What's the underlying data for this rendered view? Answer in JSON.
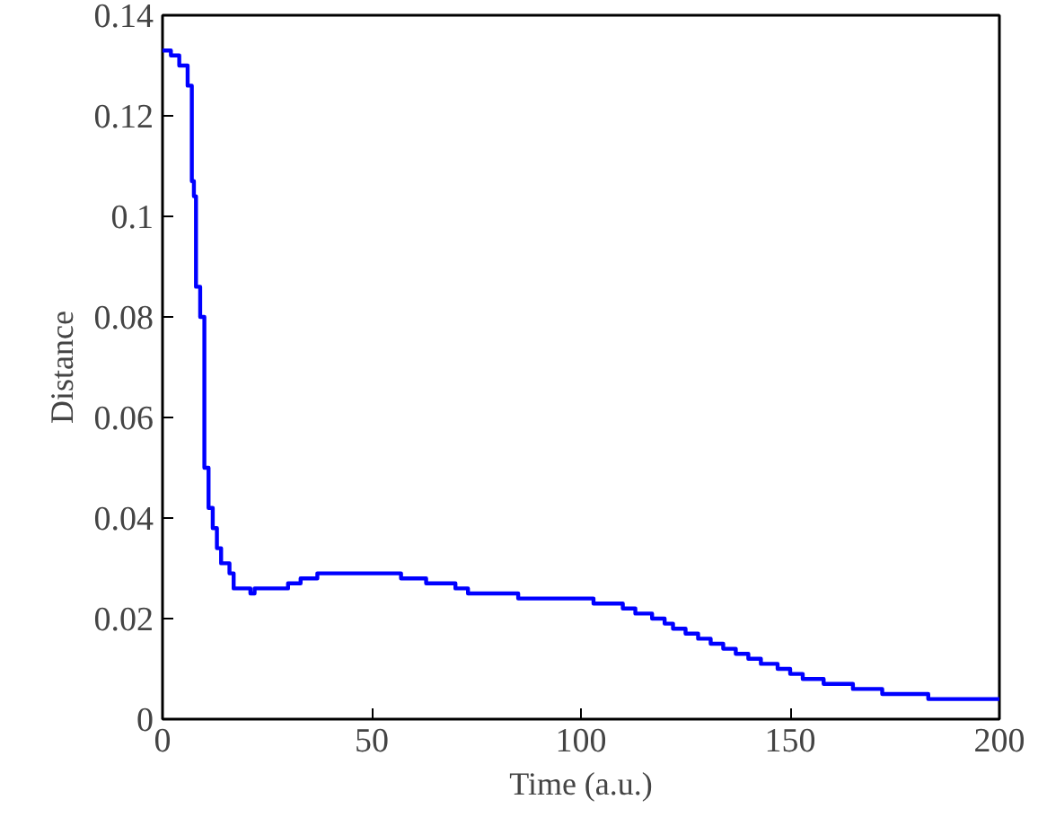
{
  "chart_data": {
    "type": "step",
    "xlabel": "Time (a.u.)",
    "ylabel": "Distance",
    "xlim": [
      0,
      200
    ],
    "ylim": [
      0,
      0.14
    ],
    "xticks": [
      0,
      50,
      100,
      150,
      200
    ],
    "yticks": [
      0,
      0.02,
      0.04,
      0.06,
      0.08,
      0.1,
      0.12,
      0.14
    ],
    "grid": false,
    "line_style": "solid",
    "series": [
      {
        "color": "#0000ff",
        "x": [
          0,
          2,
          4,
          6,
          7,
          7.5,
          8,
          9,
          10,
          11,
          12,
          13,
          14,
          16,
          17,
          21,
          22,
          30,
          33,
          37,
          55,
          57,
          63,
          70,
          73,
          85,
          103,
          110,
          113,
          117,
          120,
          122,
          125,
          128,
          131,
          134,
          137,
          140,
          143,
          147,
          150,
          153,
          158,
          165,
          172,
          183,
          200
        ],
        "values": [
          0.133,
          0.132,
          0.13,
          0.126,
          0.107,
          0.104,
          0.086,
          0.08,
          0.05,
          0.042,
          0.038,
          0.034,
          0.031,
          0.029,
          0.026,
          0.025,
          0.026,
          0.027,
          0.028,
          0.029,
          0.029,
          0.028,
          0.027,
          0.026,
          0.025,
          0.024,
          0.023,
          0.022,
          0.021,
          0.02,
          0.019,
          0.018,
          0.017,
          0.016,
          0.015,
          0.014,
          0.013,
          0.012,
          0.011,
          0.01,
          0.009,
          0.008,
          0.007,
          0.006,
          0.005,
          0.004,
          0.004
        ]
      }
    ]
  }
}
